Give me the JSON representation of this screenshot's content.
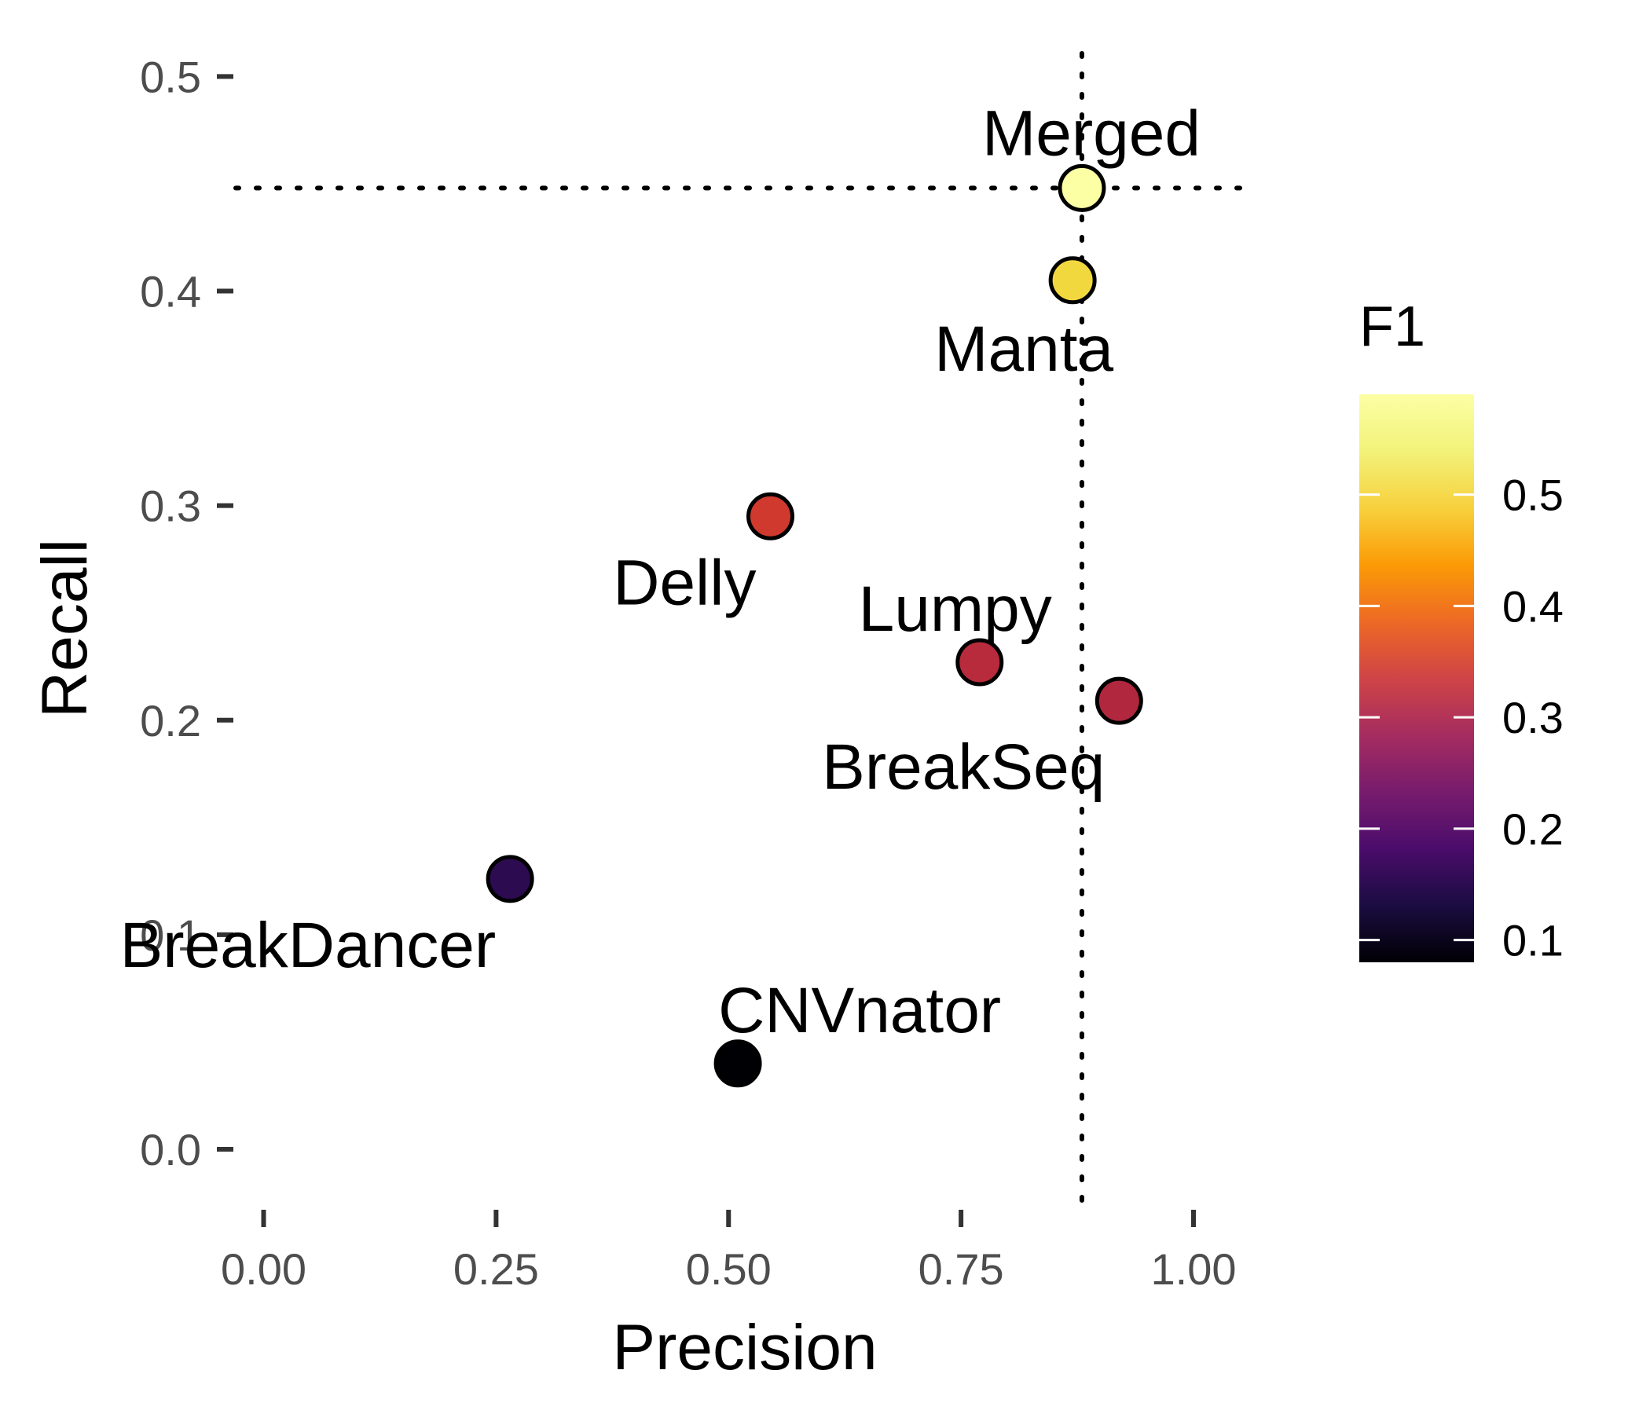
{
  "chart_data": {
    "type": "scatter",
    "xlabel": "Precision",
    "ylabel": "Recall",
    "xlim": [
      -0.03,
      1.06
    ],
    "ylim": [
      -0.03,
      0.51
    ],
    "x_ticks": [
      0.0,
      0.25,
      0.5,
      0.75,
      1.0
    ],
    "x_tick_labels": [
      "0.00",
      "0.25",
      "0.50",
      "0.75",
      "1.00"
    ],
    "y_ticks": [
      0.0,
      0.1,
      0.2,
      0.3,
      0.4,
      0.5
    ],
    "y_tick_labels": [
      "0.0",
      "0.1",
      "0.2",
      "0.3",
      "0.4",
      "0.5"
    ],
    "reference_lines": {
      "vertical_x": 0.88,
      "horizontal_y": 0.448,
      "style": "dotted"
    },
    "grid": false,
    "color_scale": {
      "title": "F1",
      "palette": "inferno",
      "min": 0.08,
      "max": 0.59,
      "ticks": [
        0.1,
        0.2,
        0.3,
        0.4,
        0.5
      ],
      "tick_labels": [
        "0.1",
        "0.2",
        "0.3",
        "0.4",
        "0.5"
      ],
      "legend_position": "right"
    },
    "points": [
      {
        "label": "Merged",
        "precision": 0.88,
        "recall": 0.448,
        "f1": 0.59,
        "color": "#fcffa4",
        "label_pos": "above"
      },
      {
        "label": "Manta",
        "precision": 0.87,
        "recall": 0.405,
        "f1": 0.55,
        "color": "#f2d83f",
        "label_pos": "below"
      },
      {
        "label": "Delly",
        "precision": 0.545,
        "recall": 0.295,
        "f1": 0.39,
        "color": "#d0392e",
        "label_pos": "below-left"
      },
      {
        "label": "Lumpy",
        "precision": 0.77,
        "recall": 0.227,
        "f1": 0.35,
        "color": "#b72b3c",
        "label_pos": "above-left"
      },
      {
        "label": "BreakSeq",
        "precision": 0.92,
        "recall": 0.209,
        "f1": 0.34,
        "color": "#b1273e",
        "label_pos": "below-left"
      },
      {
        "label": "BreakDancer",
        "precision": 0.265,
        "recall": 0.126,
        "f1": 0.17,
        "color": "#2c0b50",
        "label_pos": "below-left"
      },
      {
        "label": "CNVnator",
        "precision": 0.51,
        "recall": 0.04,
        "f1": 0.08,
        "color": "#000004",
        "label_pos": "above-right"
      }
    ]
  }
}
